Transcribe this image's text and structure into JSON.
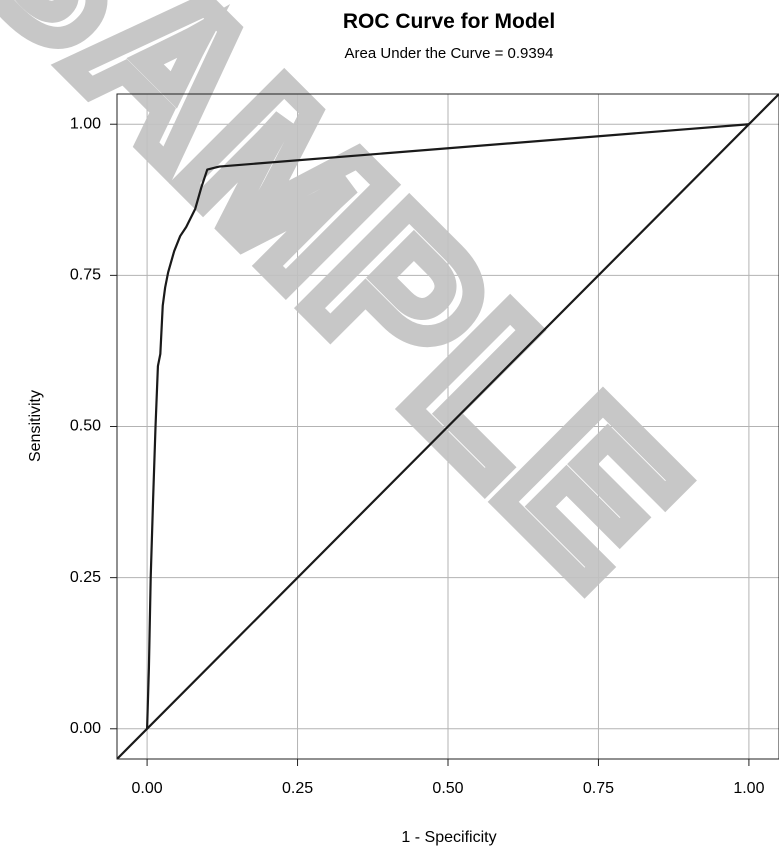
{
  "chart_data": {
    "type": "line",
    "title": "ROC Curve for Model",
    "subtitle": "Area Under the Curve = 0.9394",
    "xlabel": "1 - Specificity",
    "ylabel": "Sensitivity",
    "xlim": [
      -0.05,
      1.05
    ],
    "ylim": [
      -0.05,
      1.05
    ],
    "xticks": [
      0,
      0.25,
      0.5,
      0.75,
      1
    ],
    "yticks": [
      0,
      0.25,
      0.5,
      0.75,
      1
    ],
    "xtick_labels": [
      "0.00",
      "0.25",
      "0.50",
      "0.75",
      "1.00"
    ],
    "ytick_labels": [
      "0.00",
      "0.25",
      "0.50",
      "0.75",
      "1.00"
    ],
    "grid": true,
    "watermark": "SAMPLE",
    "series": [
      {
        "color": "#1a1a1a",
        "x": [
          0,
          0.003,
          0.006,
          0.01,
          0.014,
          0.018,
          0.022,
          0.026,
          0.03,
          0.035,
          0.045,
          0.055,
          0.065,
          0.08,
          0.09,
          0.1,
          0.12,
          1.0
        ],
        "y": [
          0,
          0.1,
          0.25,
          0.38,
          0.5,
          0.6,
          0.62,
          0.7,
          0.73,
          0.755,
          0.79,
          0.815,
          0.83,
          0.86,
          0.895,
          0.925,
          0.93,
          1.0
        ]
      },
      {
        "color": "#1a1a1a",
        "x": [
          -0.05,
          1.05
        ],
        "y": [
          -0.05,
          1.05
        ]
      }
    ]
  }
}
